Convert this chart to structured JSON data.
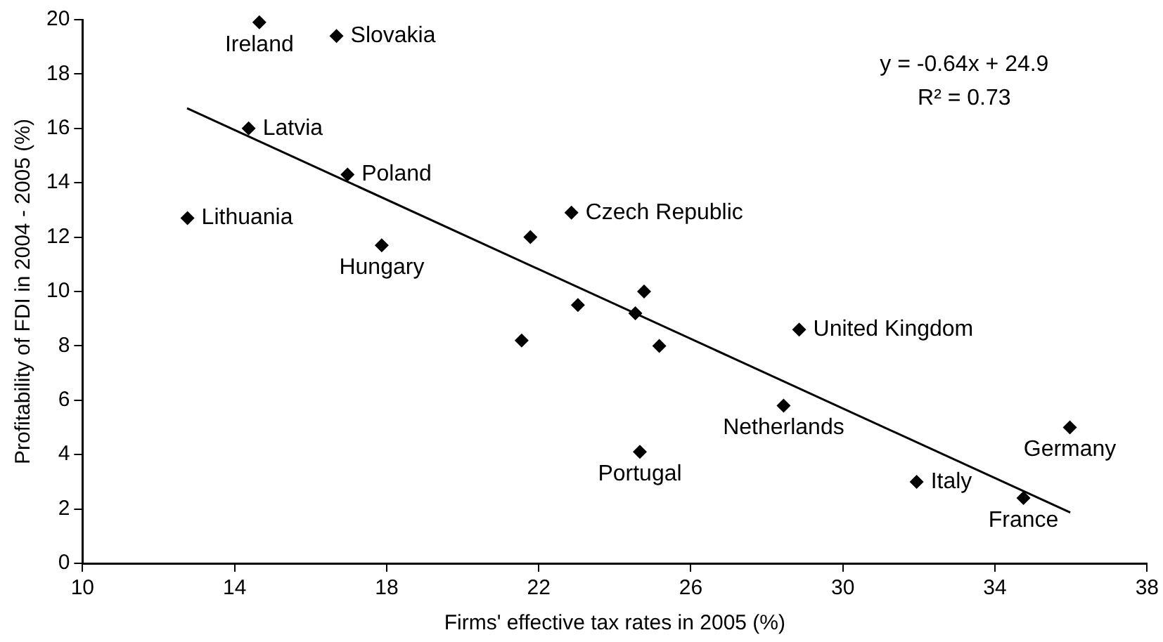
{
  "chart_data": {
    "type": "scatter",
    "xlabel": "Firms' effective tax rates in 2005 (%)",
    "ylabel": "Profitability of FDI in 2004 - 2005 (%)",
    "xlim": [
      10,
      38
    ],
    "xticks": [
      10,
      14,
      18,
      22,
      26,
      30,
      34,
      38
    ],
    "ylim": [
      0,
      20
    ],
    "yticks": [
      0,
      2,
      4,
      6,
      8,
      10,
      12,
      14,
      16,
      18,
      20
    ],
    "grid": false,
    "legend": false,
    "series": [
      {
        "color": "#000000",
        "marker": "diamond",
        "x": [
          14.65,
          16.68,
          14.37,
          16.97,
          12.76,
          17.87,
          21.78,
          22.86,
          23.03,
          24.77,
          24.54,
          25.17,
          21.55,
          28.85,
          28.44,
          24.66,
          31.94,
          34.75,
          35.97
        ],
        "values": [
          19.9,
          19.4,
          16.0,
          14.3,
          12.7,
          11.7,
          12.0,
          12.9,
          9.5,
          10.0,
          9.2,
          8.0,
          8.2,
          8.6,
          5.8,
          4.1,
          3.0,
          2.4,
          5.0
        ],
        "value_labels": [
          "Ireland",
          "Slovakia",
          "Latvia",
          "Poland",
          "Lithuania",
          "Hungary",
          null,
          "Czech Republic",
          null,
          null,
          null,
          null,
          null,
          "United Kingdom",
          "Netherlands",
          "Portugal",
          "Italy",
          "France",
          "Germany"
        ]
      },
      {
        "type": "line",
        "color": "#000000",
        "marker": "none",
        "x": [
          12.75,
          35.98
        ],
        "values": [
          16.74,
          1.87
        ]
      }
    ],
    "annotations": [
      "y = -0.64x + 24.9",
      "R² = 0.73"
    ]
  }
}
